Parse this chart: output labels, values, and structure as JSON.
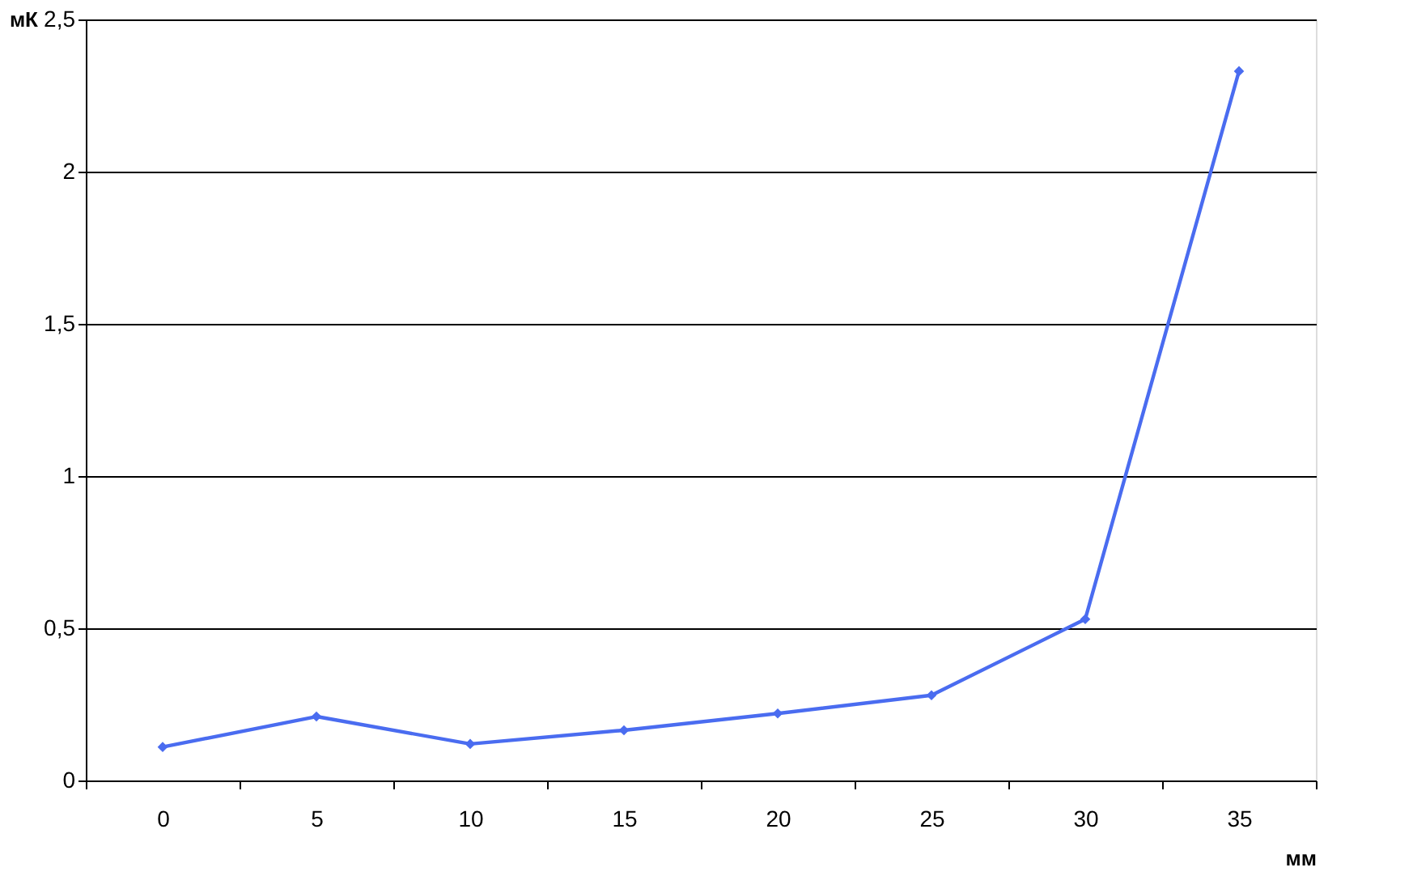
{
  "chart_data": {
    "type": "line",
    "xlabel": "мм",
    "ylabel": "мК",
    "categories": [
      "0",
      "5",
      "10",
      "15",
      "20",
      "25",
      "30",
      "35"
    ],
    "series": [
      {
        "color": "#4a6cf0",
        "values": [
          0.11,
          0.21,
          0.12,
          0.165,
          0.22,
          0.28,
          0.53,
          2.33
        ]
      }
    ],
    "ylim": [
      0,
      2.5
    ],
    "yticks": [
      0,
      {
        "value": 0.5,
        "label": "0,5"
      },
      1,
      {
        "value": 1.5,
        "label": "1,5"
      },
      2,
      {
        "value": 2.5,
        "label": "2,5"
      }
    ],
    "grid": "y",
    "marker": "diamond",
    "line_style": "solid"
  }
}
